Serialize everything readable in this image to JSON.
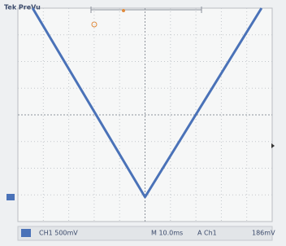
{
  "chart_data": {
    "type": "line",
    "header": "Tek PreVu",
    "x": [
      -4.42,
      0,
      4.58
    ],
    "values": [
      4,
      -3.08,
      4
    ],
    "color": "#4a72b8",
    "xlim": [
      -5,
      5
    ],
    "ylim": [
      -4,
      4
    ],
    "grid": true,
    "status": [
      "CH1 500mV",
      "M 10.0ms",
      "A Ch1",
      "186mV"
    ]
  }
}
